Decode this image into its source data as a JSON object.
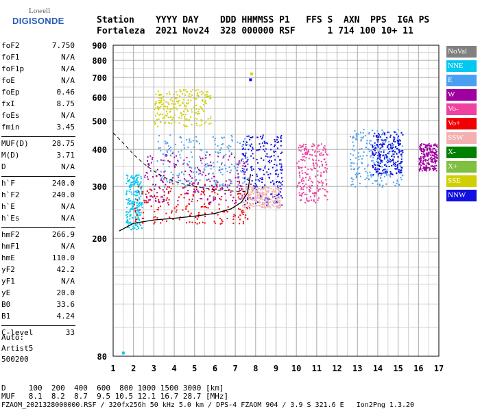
{
  "logo": {
    "top": "Lowell",
    "bottom": "DIGISONDE"
  },
  "header": {
    "line1": "Station    YYYY DAY    DDD HHMMSS P1   FFS S  AXN  PPS  IGA PS",
    "line2": "Fortaleza  2021 Nov24  328 000000 RSF      1 714 100 10+ 11"
  },
  "params": [
    {
      "name": "foF2",
      "value": "7.750"
    },
    {
      "name": "foF1",
      "value": "N/A"
    },
    {
      "name": "foF1p",
      "value": "N/A"
    },
    {
      "name": "foE",
      "value": "N/A"
    },
    {
      "name": "foEp",
      "value": "0.46"
    },
    {
      "name": "fxI",
      "value": "8.75"
    },
    {
      "name": "foEs",
      "value": "N/A"
    },
    {
      "name": "fmin",
      "value": "3.45"
    },
    {
      "name": "MUF(D)",
      "value": "28.75"
    },
    {
      "name": "M(D)",
      "value": "3.71"
    },
    {
      "name": "D",
      "value": "N/A"
    },
    {
      "name": "h`F",
      "value": "240.0"
    },
    {
      "name": "h`F2",
      "value": "240.0"
    },
    {
      "name": "h`E",
      "value": "N/A"
    },
    {
      "name": "h`Es",
      "value": "N/A"
    },
    {
      "name": "hmF2",
      "value": "266.9"
    },
    {
      "name": "hmF1",
      "value": "N/A"
    },
    {
      "name": "hmE",
      "value": "110.0"
    },
    {
      "name": "yF2",
      "value": "42.2"
    },
    {
      "name": "yF1",
      "value": "N/A"
    },
    {
      "name": "yE",
      "value": "20.0"
    },
    {
      "name": "B0",
      "value": "33.6"
    },
    {
      "name": "B1",
      "value": "4.24"
    },
    {
      "name": "C-level",
      "value": "33"
    }
  ],
  "auto": [
    "Auto:",
    "Artist5",
    "500200"
  ],
  "footer": {
    "line1": "D     100  200  400  600  800 1000 1500 3000 [km]",
    "line2": "MUF   8.1  8.2  8.7  9.5 10.5 12.1 16.7 28.7 [MHz]",
    "line3": "FZAOM_2021328000000.RSF / 320fx256h 50 kHz 5.0 km / DPS-4 FZAOM 904 / 3.9 S 321.6 E   Ion2Png 1.3.20"
  },
  "legend": [
    {
      "label": "NoVal",
      "color": "#808080"
    },
    {
      "label": "NNE",
      "color": "#00c8f0"
    },
    {
      "label": "E",
      "color": "#4aa0f0"
    },
    {
      "label": "W",
      "color": "#a000a0"
    },
    {
      "label": "Vo-",
      "color": "#f040a0"
    },
    {
      "label": "Vo+",
      "color": "#f00000"
    },
    {
      "label": "SSW",
      "color": "#f4b0b0"
    },
    {
      "label": "X-",
      "color": "#008000"
    },
    {
      "label": "X+",
      "color": "#80c040"
    },
    {
      "label": "SSE",
      "color": "#d0d000"
    },
    {
      "label": "NNW",
      "color": "#1010e0"
    }
  ],
  "chart_data": {
    "type": "scatter",
    "title": "",
    "xlabel": "",
    "ylabel": "",
    "xlim": [
      1,
      17
    ],
    "ylim": [
      80,
      900
    ],
    "y_scale": "log",
    "x_ticks": [
      1,
      2,
      3,
      4,
      5,
      6,
      7,
      8,
      9,
      10,
      11,
      12,
      13,
      14,
      15,
      16,
      17
    ],
    "y_ticks": [
      80,
      200,
      300,
      400,
      500,
      600,
      700,
      800,
      900
    ],
    "grid": true,
    "legend_position": "right",
    "clusters": [
      {
        "x": [
          1.6,
          2.4
        ],
        "y": [
          215,
          330
        ],
        "series": "NNE"
      },
      {
        "x": [
          2.0,
          7.8
        ],
        "y": [
          225,
          310
        ],
        "series": "Vo+"
      },
      {
        "x": [
          2.5,
          7.6
        ],
        "y": [
          265,
          390
        ],
        "series": "W"
      },
      {
        "x": [
          3.0,
          7.6
        ],
        "y": [
          300,
          450
        ],
        "series": "E"
      },
      {
        "x": [
          3.0,
          5.8
        ],
        "y": [
          480,
          640
        ],
        "series": "SSE"
      },
      {
        "x": [
          7.3,
          9.3
        ],
        "y": [
          260,
          450
        ],
        "series": "NNW"
      },
      {
        "x": [
          7.3,
          9.2
        ],
        "y": [
          255,
          300
        ],
        "series": "SSW"
      },
      {
        "x": [
          10.0,
          11.5
        ],
        "y": [
          265,
          420
        ],
        "series": "Vo-"
      },
      {
        "x": [
          12.6,
          15.2
        ],
        "y": [
          300,
          470
        ],
        "series": "E"
      },
      {
        "x": [
          13.7,
          15.2
        ],
        "y": [
          330,
          460
        ],
        "series": "NNW"
      },
      {
        "x": [
          16.0,
          16.9
        ],
        "y": [
          340,
          420
        ],
        "series": "W"
      }
    ],
    "profile_curve": {
      "x": [
        1.3,
        2,
        3,
        4,
        5,
        6,
        6.8,
        7.3,
        7.6,
        7.75
      ],
      "y": [
        212,
        225,
        231,
        234,
        238,
        243,
        252,
        265,
        285,
        330
      ]
    },
    "dashed_curve": {
      "x": [
        1.0,
        1.5,
        2.0,
        2.5,
        3.0,
        3.5,
        4.0,
        4.5,
        5.0,
        5.5,
        6.0,
        6.5,
        7.0,
        7.5
      ],
      "y": [
        455,
        420,
        385,
        358,
        338,
        322,
        312,
        305,
        300,
        296,
        292,
        290,
        289,
        288
      ]
    },
    "isolated_points": [
      {
        "x": 1.5,
        "y": 82,
        "series": "NNE"
      },
      {
        "x": 7.8,
        "y": 720,
        "series": "SSE"
      },
      {
        "x": 7.75,
        "y": 688,
        "series": "NNW"
      }
    ]
  }
}
